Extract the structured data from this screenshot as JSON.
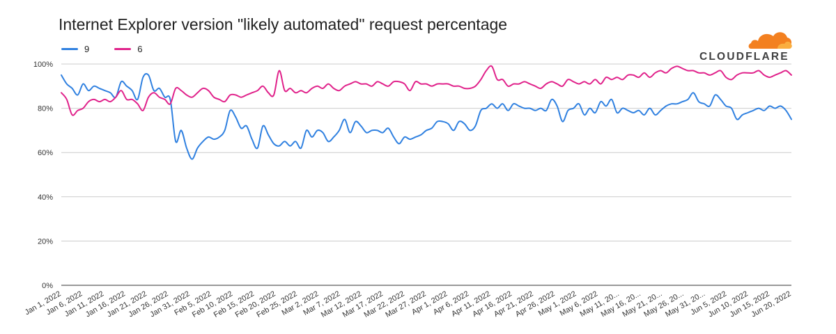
{
  "logo": {
    "text": "CLOUDFLARE",
    "color": "#F38020"
  },
  "chart_data": {
    "type": "line",
    "title": "Internet Explorer version \"likely automated\" request percentage",
    "xlabel": "",
    "ylabel": "",
    "ylim": [
      0,
      100
    ],
    "y_ticks": [
      "0%",
      "20%",
      "40%",
      "60%",
      "80%",
      "100%"
    ],
    "x_ticks": [
      "Jan 1, 2022",
      "Jan 6, 2022",
      "Jan 11, 2022",
      "Jan 16, 2022",
      "Jan 21, 2022",
      "Jan 26, 2022",
      "Jan 31, 2022",
      "Feb 5, 2022",
      "Feb 10, 2022",
      "Feb 15, 2022",
      "Feb 20, 2022",
      "Feb 25, 2022",
      "Mar 2, 2022",
      "Mar 7, 2022",
      "Mar 12, 2022",
      "Mar 17, 2022",
      "Mar 22, 2022",
      "Mar 27, 2022",
      "Apr 1, 2022",
      "Apr 6, 2022",
      "Apr 11, 2022",
      "Apr 16, 2022",
      "Apr 21, 2022",
      "Apr 26, 2022",
      "May 1, 2022",
      "May 6, 2022",
      "May 11, 20...",
      "May 16, 20...",
      "May 21, 20...",
      "May 26, 20...",
      "May 31, 20...",
      "Jun 5, 2022",
      "Jun 10, 2022",
      "Jun 15, 2022",
      "Jun 20, 2022"
    ],
    "grid": true,
    "legend_position": "top-left",
    "x_start": "Jan 1, 2022",
    "x_end": "Jun 21, 2022",
    "series": [
      {
        "name": "9",
        "color": "#2F80E0",
        "values": [
          95,
          91,
          89,
          86,
          91,
          88,
          90,
          89,
          88,
          87,
          85,
          92,
          90,
          88,
          84,
          94,
          95,
          88,
          89,
          85,
          84,
          65,
          70,
          62,
          57,
          62,
          65,
          67,
          66,
          67,
          70,
          79,
          76,
          71,
          72,
          66,
          62,
          72,
          68,
          64,
          63,
          65,
          63,
          65,
          62,
          70,
          67,
          70,
          69,
          65,
          67,
          70,
          75,
          69,
          74,
          72,
          69,
          70,
          70,
          69,
          71,
          67,
          64,
          67,
          66,
          67,
          68,
          70,
          71,
          74,
          74,
          73,
          70,
          74,
          73,
          70,
          72,
          79,
          80,
          82,
          80,
          82,
          79,
          82,
          81,
          80,
          80,
          79,
          80,
          79,
          84,
          81,
          74,
          79,
          80,
          82,
          77,
          80,
          78,
          83,
          81,
          84,
          78,
          80,
          79,
          78,
          79,
          77,
          80,
          77,
          79,
          81,
          82,
          82,
          83,
          84,
          87,
          83,
          82,
          81,
          86,
          84,
          81,
          80,
          75,
          77,
          78,
          79,
          80,
          79,
          81,
          80,
          81,
          79,
          75
        ]
      },
      {
        "name": "6",
        "color": "#E0218A",
        "values": [
          87,
          84,
          77,
          79,
          80,
          83,
          84,
          83,
          84,
          83,
          85,
          88,
          84,
          84,
          82,
          79,
          85,
          87,
          85,
          84,
          82,
          89,
          88,
          86,
          85,
          87,
          89,
          88,
          85,
          84,
          83,
          86,
          86,
          85,
          86,
          87,
          88,
          90,
          87,
          86,
          97,
          88,
          89,
          87,
          88,
          87,
          89,
          90,
          89,
          91,
          89,
          88,
          90,
          91,
          92,
          91,
          91,
          90,
          92,
          91,
          90,
          92,
          92,
          91,
          88,
          92,
          91,
          91,
          90,
          91,
          91,
          91,
          90,
          90,
          89,
          89,
          90,
          93,
          97,
          99,
          93,
          93,
          90,
          91,
          91,
          92,
          91,
          90,
          89,
          91,
          92,
          91,
          90,
          93,
          92,
          91,
          92,
          91,
          93,
          91,
          94,
          93,
          94,
          93,
          95,
          95,
          94,
          96,
          94,
          96,
          97,
          96,
          98,
          99,
          98,
          97,
          97,
          96,
          96,
          95,
          96,
          97,
          94,
          93,
          95,
          96,
          96,
          96,
          97,
          95,
          94,
          95,
          96,
          97,
          95
        ]
      }
    ]
  }
}
